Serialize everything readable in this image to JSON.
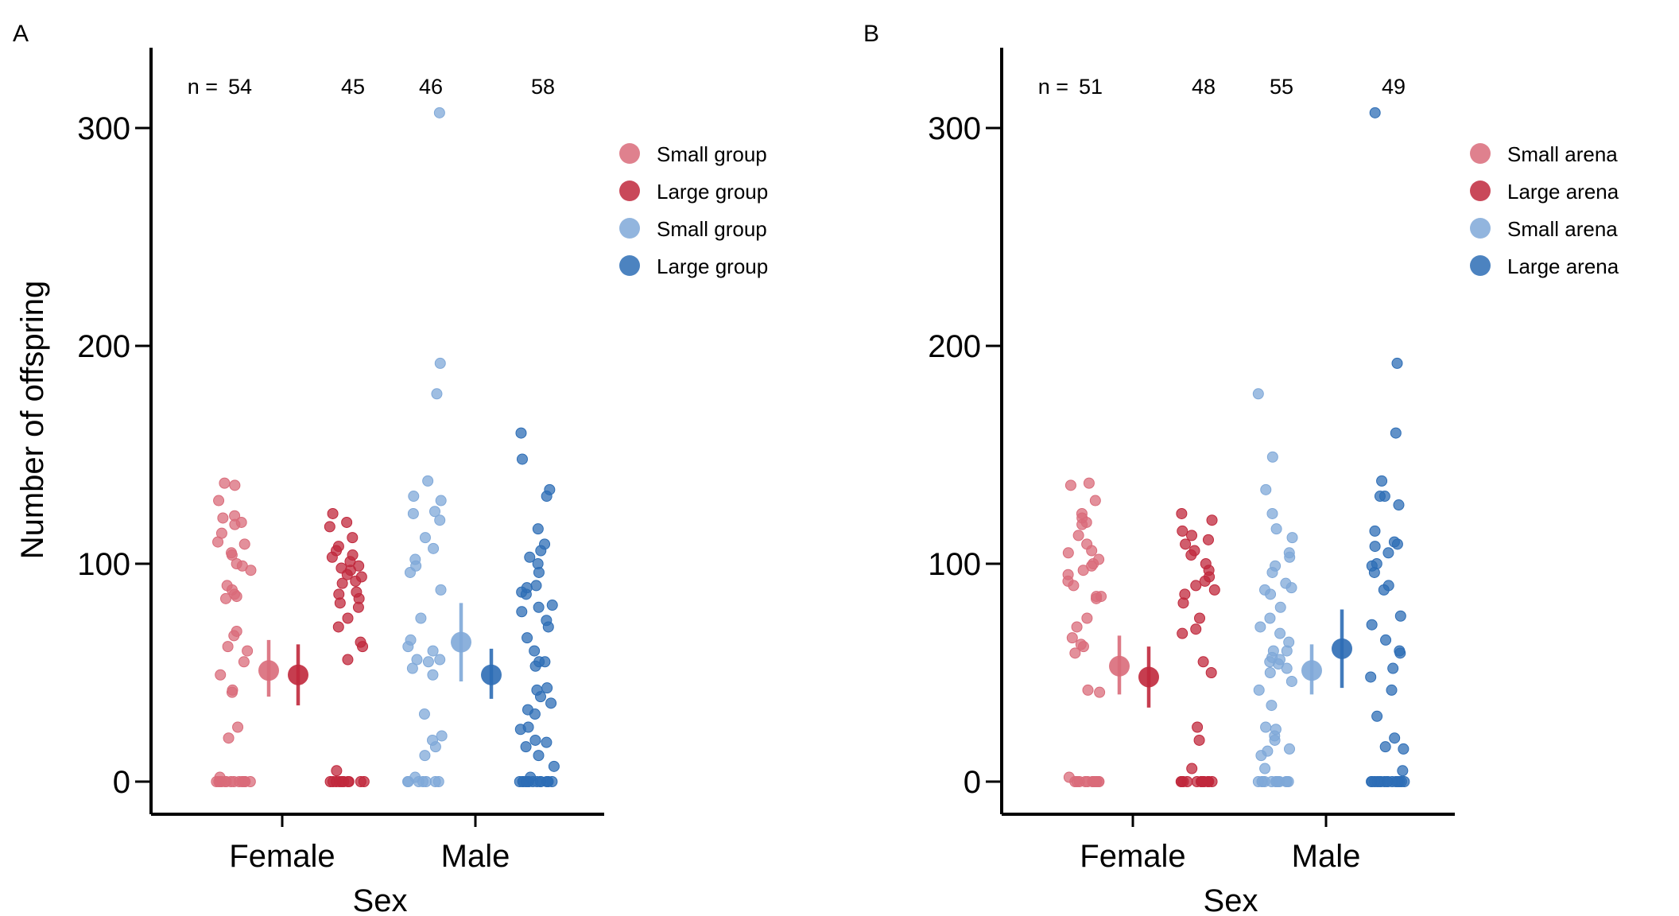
{
  "chart_data": [
    {
      "type": "scatter",
      "panel_label": "A",
      "title": "",
      "xlabel": "Sex",
      "ylabel": "Number of offspring",
      "ylim": [
        -15,
        335
      ],
      "yticks": [
        0,
        100,
        200,
        300
      ],
      "categories": [
        "Female",
        "Male"
      ],
      "n_prefix": "n = ",
      "legend": [
        "Small group",
        "Large group",
        "Small group",
        "Large group"
      ],
      "legend_position": "right",
      "series": [
        {
          "name": "Small group",
          "sex": "Female",
          "color": "#d96b7a",
          "n": "54",
          "mean": 51,
          "ci": [
            39,
            65
          ],
          "values": [
            0,
            0,
            0,
            0,
            0,
            0,
            0,
            0,
            0,
            0,
            0,
            0,
            0,
            0,
            2,
            20,
            25,
            41,
            42,
            49,
            55,
            60,
            62,
            67,
            69,
            84,
            85,
            86,
            88,
            90,
            97,
            99,
            100,
            104,
            105,
            109,
            110,
            114,
            118,
            119,
            121,
            122,
            129,
            136,
            137
          ]
        },
        {
          "name": "Large group",
          "sex": "Female",
          "color": "#c0283c",
          "n": "45",
          "mean": 49,
          "ci": [
            35,
            63
          ],
          "values": [
            0,
            0,
            0,
            0,
            0,
            0,
            0,
            0,
            0,
            0,
            5,
            56,
            62,
            64,
            71,
            75,
            80,
            82,
            84,
            86,
            87,
            91,
            92,
            94,
            95,
            97,
            98,
            99,
            101,
            103,
            104,
            106,
            108,
            112,
            117,
            119,
            123
          ]
        },
        {
          "name": "Small group",
          "sex": "Male",
          "color": "#7fa8d8",
          "n": "46",
          "mean": 64,
          "ci": [
            46,
            82
          ],
          "values": [
            0,
            0,
            0,
            0,
            0,
            0,
            0,
            2,
            12,
            16,
            19,
            21,
            31,
            49,
            52,
            55,
            56,
            56,
            60,
            62,
            65,
            75,
            88,
            96,
            99,
            102,
            107,
            112,
            120,
            123,
            124,
            129,
            131,
            138,
            178,
            192,
            307
          ]
        },
        {
          "name": "Large group",
          "sex": "Male",
          "color": "#2d6db5",
          "n": "58",
          "mean": 49,
          "ci": [
            38,
            61
          ],
          "values": [
            0,
            0,
            0,
            0,
            0,
            0,
            0,
            0,
            0,
            0,
            0,
            0,
            0,
            0,
            0,
            2,
            7,
            12,
            16,
            18,
            19,
            24,
            25,
            31,
            33,
            36,
            39,
            42,
            43,
            53,
            55,
            55,
            60,
            66,
            71,
            74,
            78,
            80,
            81,
            86,
            87,
            89,
            90,
            96,
            100,
            103,
            106,
            109,
            116,
            131,
            134,
            148,
            160
          ]
        }
      ]
    },
    {
      "type": "scatter",
      "panel_label": "B",
      "title": "",
      "xlabel": "Sex",
      "ylabel": "",
      "ylim": [
        -15,
        335
      ],
      "yticks": [
        0,
        100,
        200,
        300
      ],
      "categories": [
        "Female",
        "Male"
      ],
      "n_prefix": "n = ",
      "legend": [
        "Small arena",
        "Large arena",
        "Small arena",
        "Large arena"
      ],
      "legend_position": "right",
      "series": [
        {
          "name": "Small arena",
          "sex": "Female",
          "color": "#d96b7a",
          "n": "51",
          "mean": 53,
          "ci": [
            40,
            67
          ],
          "values": [
            0,
            0,
            0,
            0,
            0,
            0,
            0,
            0,
            0,
            0,
            0,
            0,
            2,
            41,
            42,
            59,
            62,
            63,
            66,
            71,
            75,
            84,
            85,
            85,
            90,
            92,
            95,
            97,
            99,
            100,
            102,
            105,
            106,
            109,
            113,
            118,
            119,
            121,
            123,
            129,
            136,
            137
          ]
        },
        {
          "name": "Large arena",
          "sex": "Female",
          "color": "#c0283c",
          "n": "48",
          "mean": 48,
          "ci": [
            34,
            62
          ],
          "values": [
            0,
            0,
            0,
            0,
            0,
            0,
            0,
            0,
            0,
            0,
            0,
            0,
            0,
            0,
            0,
            6,
            19,
            25,
            50,
            55,
            68,
            70,
            75,
            82,
            86,
            88,
            90,
            92,
            94,
            97,
            100,
            104,
            106,
            109,
            111,
            113,
            115,
            120,
            123
          ]
        },
        {
          "name": "Small arena",
          "sex": "Male",
          "color": "#7fa8d8",
          "n": "55",
          "mean": 51,
          "ci": [
            40,
            63
          ],
          "values": [
            0,
            0,
            0,
            0,
            0,
            0,
            0,
            0,
            0,
            0,
            0,
            0,
            6,
            12,
            14,
            15,
            19,
            21,
            24,
            25,
            35,
            42,
            46,
            50,
            52,
            54,
            55,
            56,
            57,
            60,
            60,
            64,
            68,
            71,
            75,
            80,
            86,
            88,
            89,
            91,
            96,
            99,
            103,
            105,
            112,
            116,
            123,
            134,
            149,
            178
          ]
        },
        {
          "name": "Large arena",
          "sex": "Male",
          "color": "#2d6db5",
          "n": "49",
          "mean": 61,
          "ci": [
            43,
            79
          ],
          "values": [
            0,
            0,
            0,
            0,
            0,
            0,
            0,
            0,
            0,
            0,
            0,
            0,
            0,
            0,
            0,
            5,
            15,
            16,
            20,
            30,
            42,
            48,
            52,
            59,
            60,
            65,
            72,
            76,
            88,
            90,
            96,
            99,
            100,
            105,
            108,
            109,
            110,
            115,
            127,
            131,
            131,
            138,
            160,
            192,
            307
          ]
        }
      ]
    }
  ]
}
